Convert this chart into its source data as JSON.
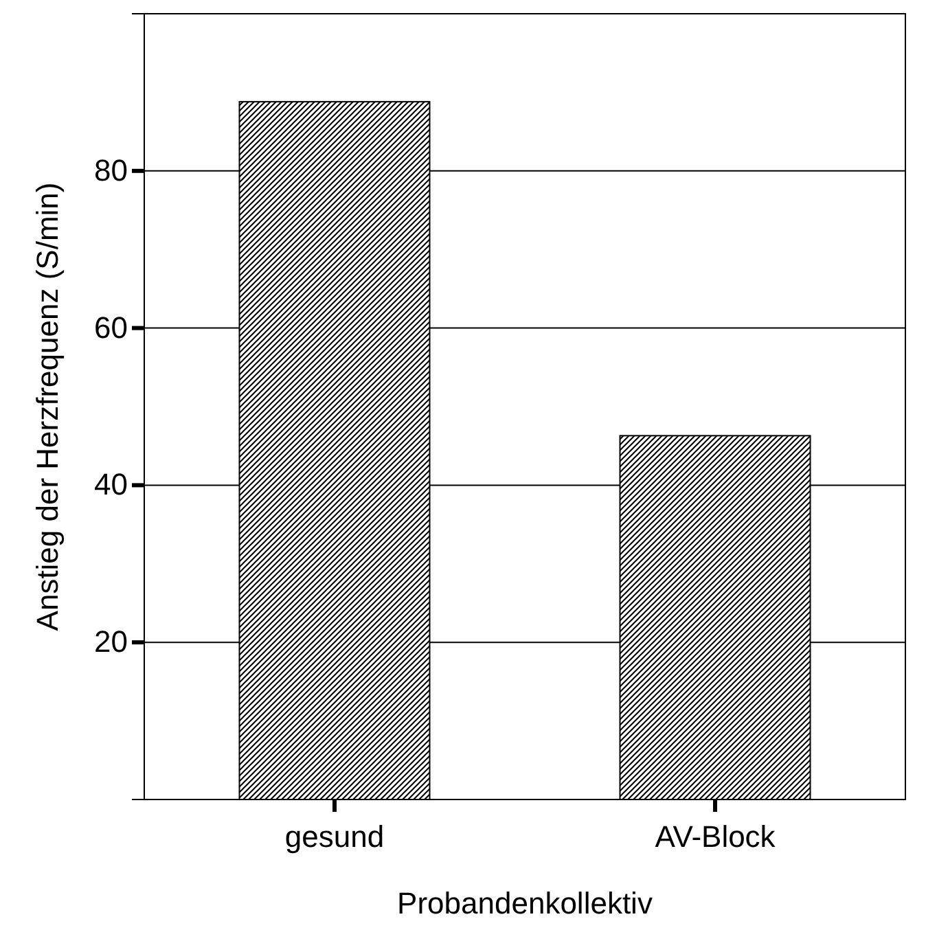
{
  "chart_data": {
    "type": "bar",
    "xlabel": "Probandenkollektiv",
    "ylabel": "Anstieg der Herzfrequenz (S/min)",
    "categories": [
      "gesund",
      "AV-Block"
    ],
    "values": [
      88.8,
      46.3
    ],
    "color": "#000000",
    "ylim": [
      0,
      100
    ],
    "yticks": [
      20,
      40,
      60,
      80
    ],
    "grid": "y"
  }
}
